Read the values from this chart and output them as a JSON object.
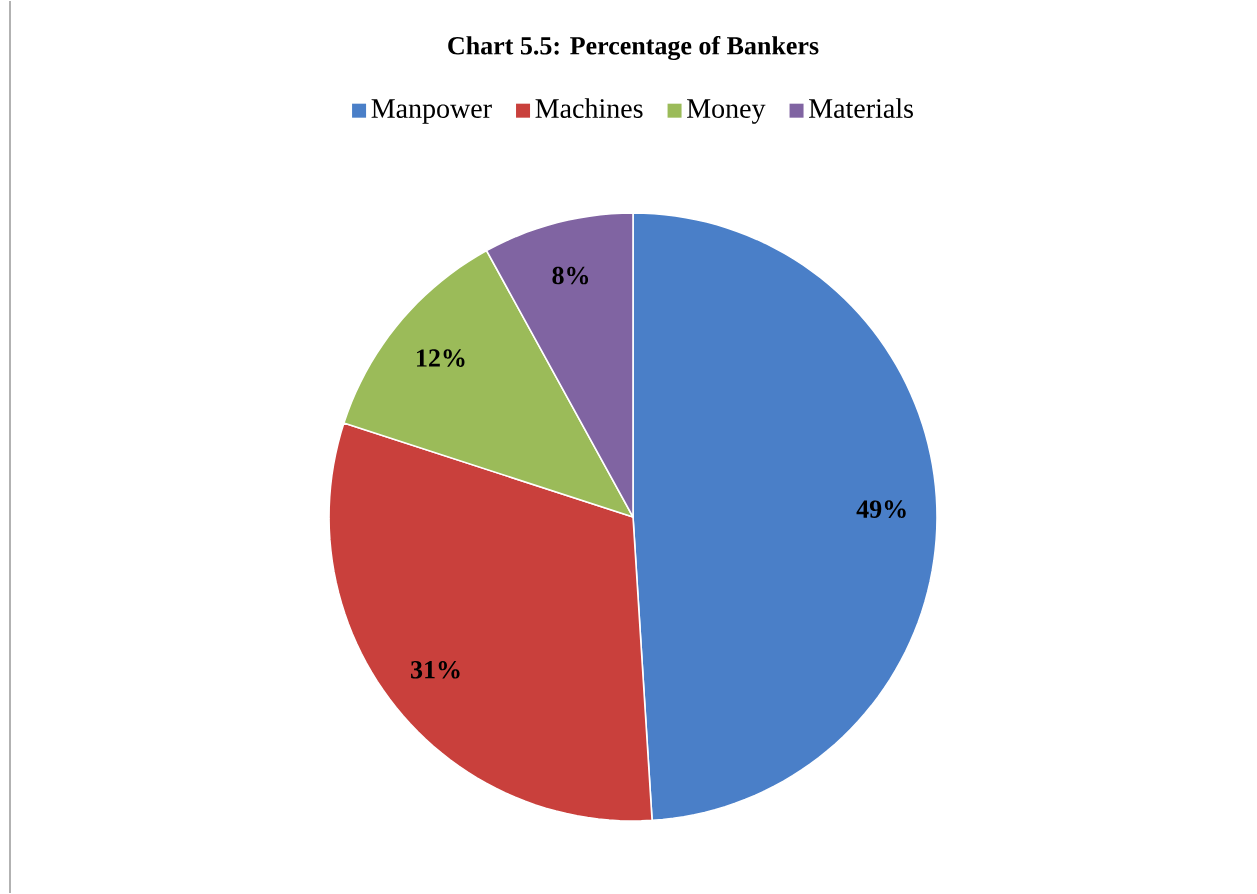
{
  "chart_data": {
    "type": "pie",
    "title": "Chart 5.5: Percentage of Bankers",
    "categories": [
      "Manpower",
      "Machines",
      "Money",
      "Materials"
    ],
    "values": [
      49,
      31,
      12,
      8
    ],
    "colors": [
      "#4a7fc8",
      "#c9403c",
      "#9bbb59",
      "#8064a2"
    ],
    "value_labels": [
      "49%",
      "31%",
      "12%",
      "8%"
    ],
    "legend": "top"
  }
}
